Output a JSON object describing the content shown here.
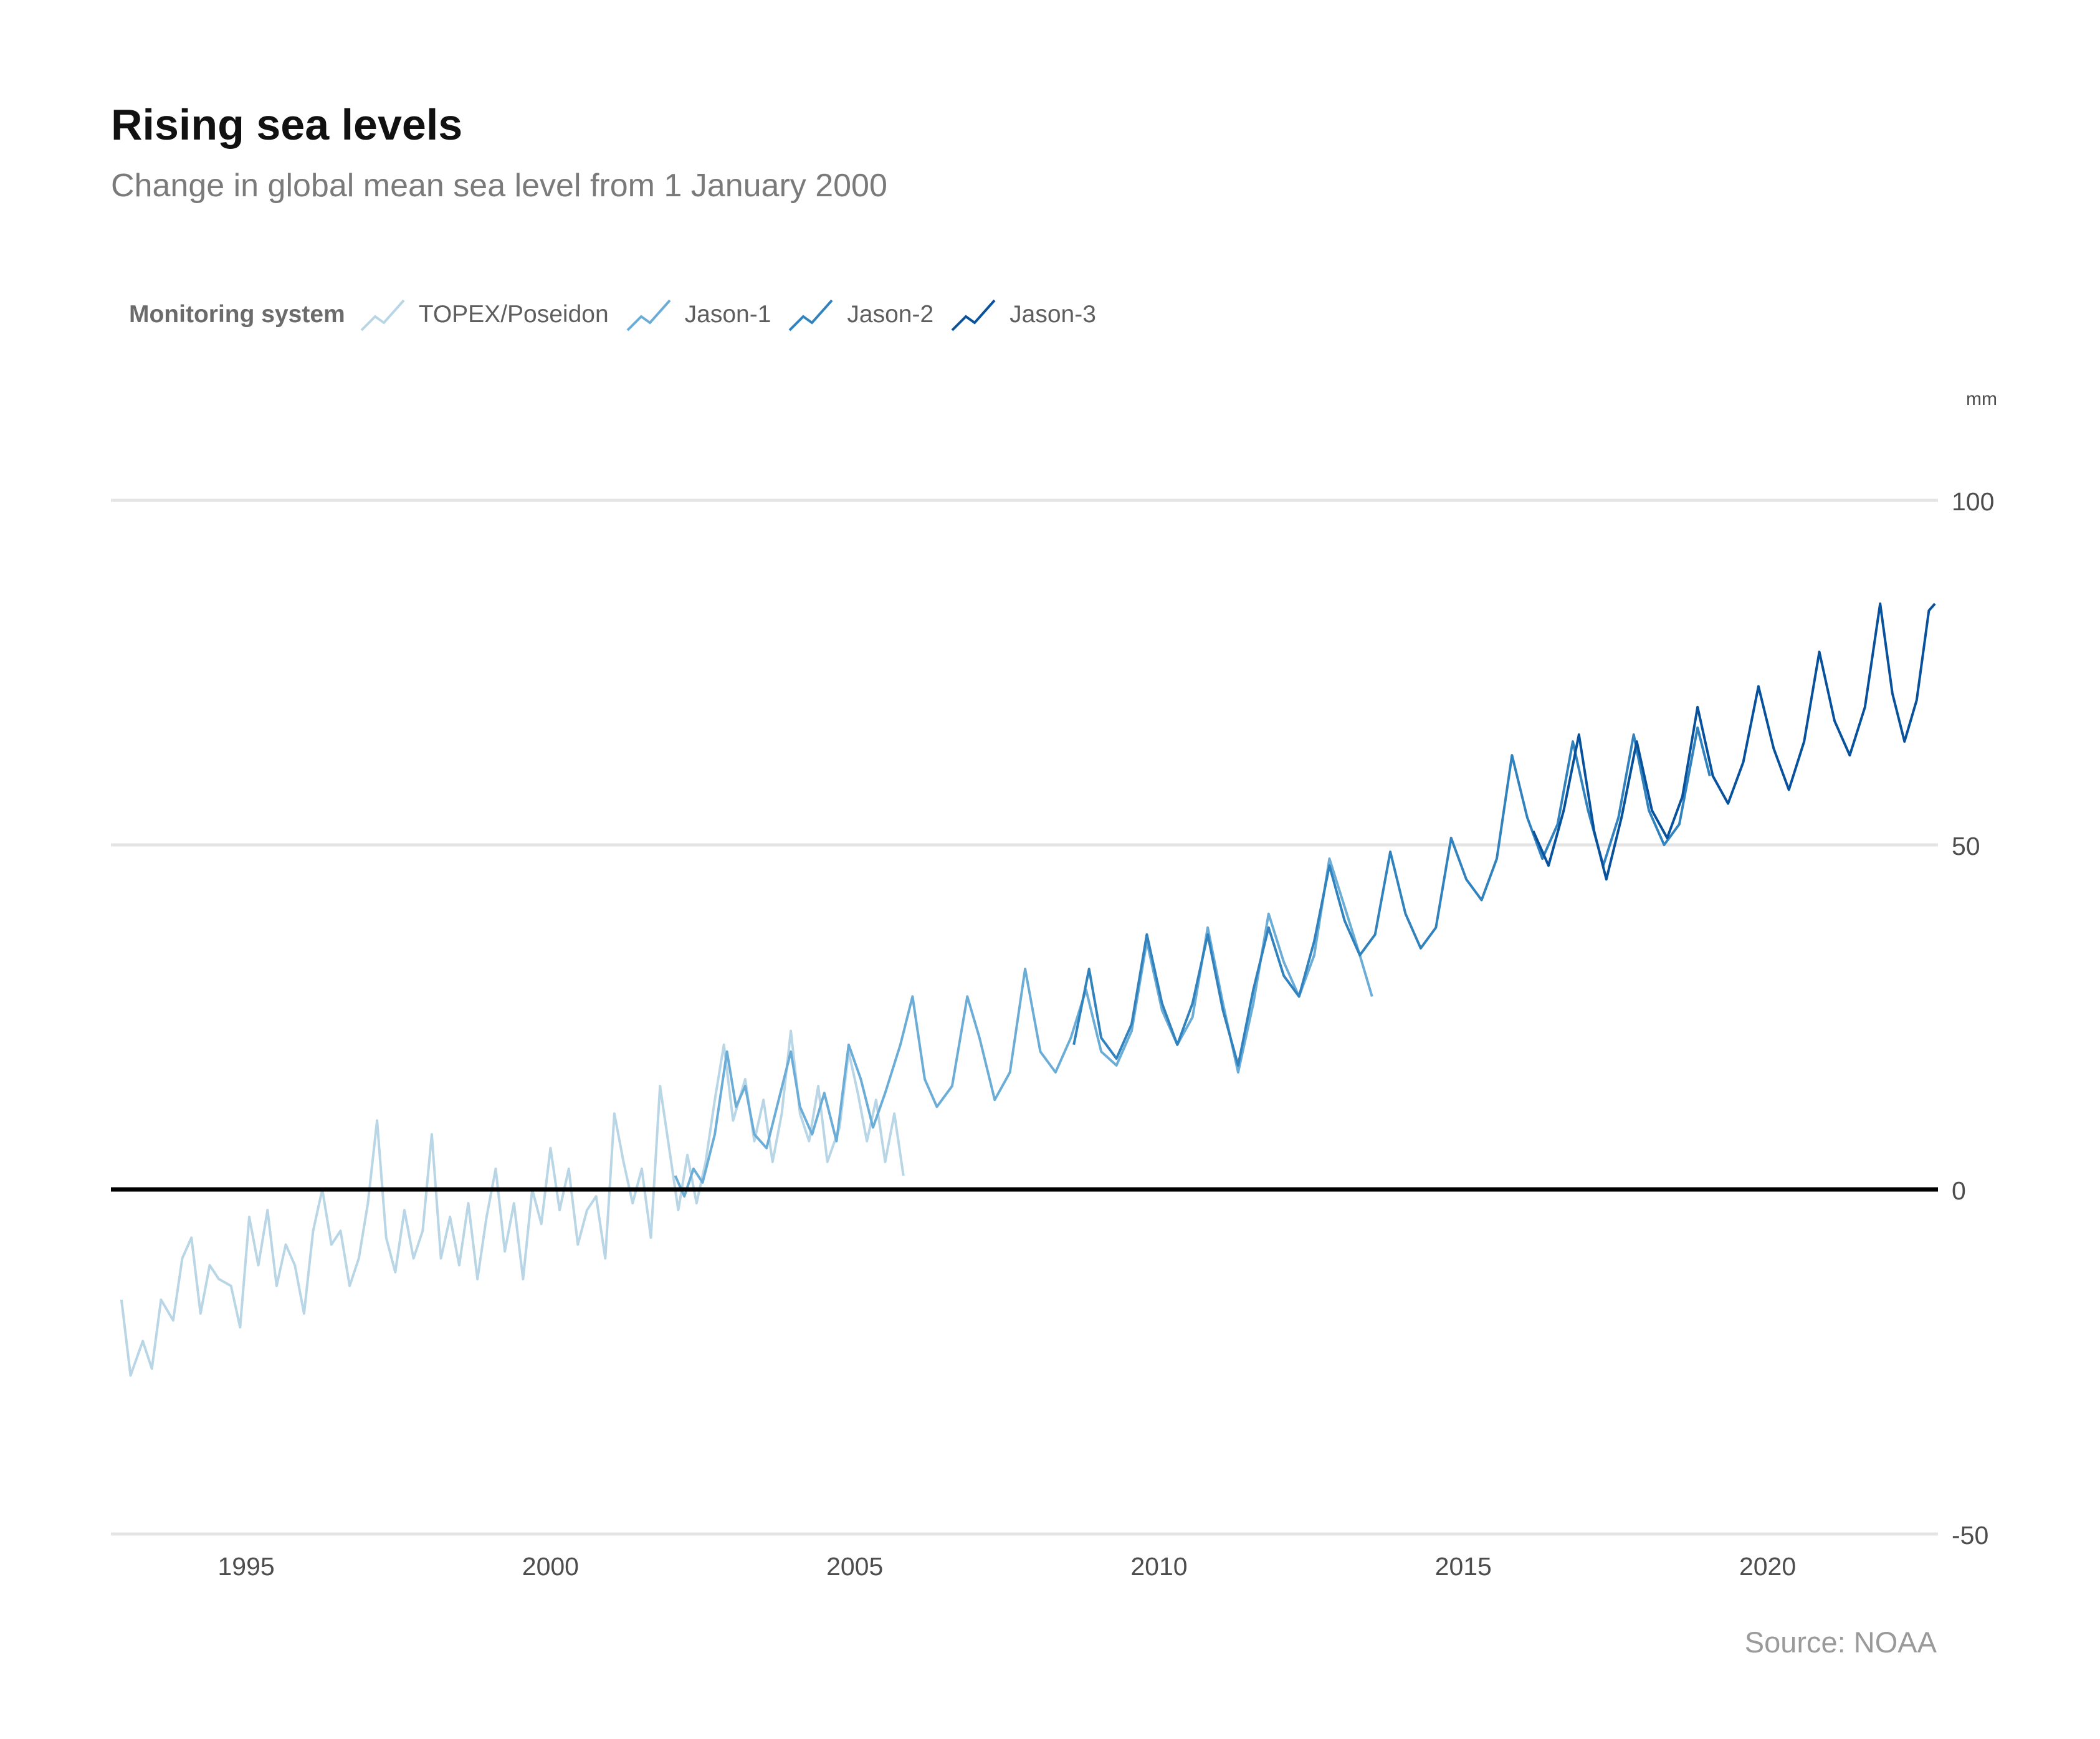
{
  "chart_data": {
    "type": "line",
    "title": "Rising sea levels",
    "subtitle": "Change in global mean sea level from 1 January 2000",
    "ylabel": "mm",
    "xlabel": "",
    "x_range": [
      1992.9,
      2022.8
    ],
    "ylim": [
      -50,
      100
    ],
    "x_ticks": [
      1995,
      2000,
      2005,
      2010,
      2015,
      2020
    ],
    "x_tick_labels": [
      "1995",
      "2000",
      "2005",
      "2010",
      "2015",
      "2020"
    ],
    "y_ticks": [
      -50,
      0,
      50,
      100
    ],
    "y_tick_labels": [
      "-50",
      "0",
      "50",
      "100"
    ],
    "reference_line": 0,
    "grid": true,
    "legend_title": "Monitoring system",
    "legend_position": "top-left",
    "source": "Source: NOAA",
    "series": [
      {
        "name": "TOPEX/Poseidon",
        "color": "#b9d6e6",
        "points": [
          [
            1992.95,
            -16
          ],
          [
            1993.1,
            -27
          ],
          [
            1993.3,
            -22
          ],
          [
            1993.45,
            -26
          ],
          [
            1993.6,
            -16
          ],
          [
            1993.8,
            -19
          ],
          [
            1993.95,
            -10
          ],
          [
            1994.1,
            -7
          ],
          [
            1994.25,
            -18
          ],
          [
            1994.4,
            -11
          ],
          [
            1994.55,
            -13
          ],
          [
            1994.75,
            -14
          ],
          [
            1994.9,
            -20
          ],
          [
            1995.05,
            -4
          ],
          [
            1995.2,
            -11
          ],
          [
            1995.35,
            -3
          ],
          [
            1995.5,
            -14
          ],
          [
            1995.65,
            -8
          ],
          [
            1995.8,
            -11
          ],
          [
            1995.95,
            -18
          ],
          [
            1996.1,
            -6
          ],
          [
            1996.25,
            0
          ],
          [
            1996.4,
            -8
          ],
          [
            1996.55,
            -6
          ],
          [
            1996.7,
            -14
          ],
          [
            1996.85,
            -10
          ],
          [
            1997,
            -2
          ],
          [
            1997.15,
            10
          ],
          [
            1997.3,
            -7
          ],
          [
            1997.45,
            -12
          ],
          [
            1997.6,
            -3
          ],
          [
            1997.75,
            -10
          ],
          [
            1997.9,
            -6
          ],
          [
            1998.05,
            8
          ],
          [
            1998.2,
            -10
          ],
          [
            1998.35,
            -4
          ],
          [
            1998.5,
            -11
          ],
          [
            1998.65,
            -2
          ],
          [
            1998.8,
            -13
          ],
          [
            1998.95,
            -4
          ],
          [
            1999.1,
            3
          ],
          [
            1999.25,
            -9
          ],
          [
            1999.4,
            -2
          ],
          [
            1999.55,
            -13
          ],
          [
            1999.7,
            0
          ],
          [
            1999.85,
            -5
          ],
          [
            2000,
            6
          ],
          [
            2000.15,
            -3
          ],
          [
            2000.3,
            3
          ],
          [
            2000.45,
            -8
          ],
          [
            2000.6,
            -3
          ],
          [
            2000.75,
            -1
          ],
          [
            2000.9,
            -10
          ],
          [
            2001.05,
            11
          ],
          [
            2001.2,
            4
          ],
          [
            2001.35,
            -2
          ],
          [
            2001.5,
            3
          ],
          [
            2001.65,
            -7
          ],
          [
            2001.8,
            15
          ],
          [
            2001.95,
            6
          ],
          [
            2002.1,
            -3
          ],
          [
            2002.25,
            5
          ],
          [
            2002.4,
            -2
          ],
          [
            2002.55,
            4
          ],
          [
            2002.7,
            13
          ],
          [
            2002.85,
            21
          ],
          [
            2003,
            10
          ],
          [
            2003.2,
            16
          ],
          [
            2003.35,
            7
          ],
          [
            2003.5,
            13
          ],
          [
            2003.65,
            4
          ],
          [
            2003.8,
            11
          ],
          [
            2003.95,
            23
          ],
          [
            2004.1,
            11
          ],
          [
            2004.25,
            7
          ],
          [
            2004.4,
            15
          ],
          [
            2004.55,
            4
          ],
          [
            2004.75,
            9
          ],
          [
            2004.9,
            20
          ],
          [
            2005.05,
            14
          ],
          [
            2005.2,
            7
          ],
          [
            2005.35,
            13
          ],
          [
            2005.5,
            4
          ],
          [
            2005.65,
            11
          ],
          [
            2005.8,
            2
          ]
        ]
      },
      {
        "name": "Jason-1",
        "color": "#6badd6",
        "points": [
          [
            2002.05,
            2
          ],
          [
            2002.2,
            -1
          ],
          [
            2002.35,
            3
          ],
          [
            2002.5,
            1
          ],
          [
            2002.7,
            8
          ],
          [
            2002.9,
            20
          ],
          [
            2003.05,
            12
          ],
          [
            2003.2,
            15
          ],
          [
            2003.35,
            8
          ],
          [
            2003.55,
            6
          ],
          [
            2003.75,
            13
          ],
          [
            2003.95,
            20
          ],
          [
            2004.1,
            12
          ],
          [
            2004.3,
            8
          ],
          [
            2004.5,
            14
          ],
          [
            2004.7,
            7
          ],
          [
            2004.9,
            21
          ],
          [
            2005.1,
            16
          ],
          [
            2005.3,
            9
          ],
          [
            2005.5,
            14
          ],
          [
            2005.75,
            21
          ],
          [
            2005.95,
            28
          ],
          [
            2006.15,
            16
          ],
          [
            2006.35,
            12
          ],
          [
            2006.6,
            15
          ],
          [
            2006.85,
            28
          ],
          [
            2007.05,
            22
          ],
          [
            2007.3,
            13
          ],
          [
            2007.55,
            17
          ],
          [
            2007.8,
            32
          ],
          [
            2008.05,
            20
          ],
          [
            2008.3,
            17
          ],
          [
            2008.55,
            22
          ],
          [
            2008.8,
            29
          ],
          [
            2009.05,
            20
          ],
          [
            2009.3,
            18
          ],
          [
            2009.55,
            23
          ],
          [
            2009.8,
            36
          ],
          [
            2010.05,
            26
          ],
          [
            2010.3,
            21
          ],
          [
            2010.55,
            25
          ],
          [
            2010.8,
            38
          ],
          [
            2011.05,
            27
          ],
          [
            2011.3,
            17
          ],
          [
            2011.55,
            27
          ],
          [
            2011.8,
            40
          ],
          [
            2012.05,
            33
          ],
          [
            2012.3,
            28
          ],
          [
            2012.55,
            34
          ],
          [
            2012.8,
            48
          ],
          [
            2013.05,
            41
          ],
          [
            2013.3,
            34
          ],
          [
            2013.5,
            28
          ]
        ]
      },
      {
        "name": "Jason-2",
        "color": "#3182bd",
        "points": [
          [
            2008.6,
            21
          ],
          [
            2008.85,
            32
          ],
          [
            2009.05,
            22
          ],
          [
            2009.3,
            19
          ],
          [
            2009.55,
            24
          ],
          [
            2009.8,
            37
          ],
          [
            2010.05,
            27
          ],
          [
            2010.3,
            21
          ],
          [
            2010.55,
            27
          ],
          [
            2010.8,
            37
          ],
          [
            2011.05,
            26
          ],
          [
            2011.3,
            18
          ],
          [
            2011.55,
            29
          ],
          [
            2011.8,
            38
          ],
          [
            2012.05,
            31
          ],
          [
            2012.3,
            28
          ],
          [
            2012.55,
            36
          ],
          [
            2012.8,
            47
          ],
          [
            2013.05,
            39
          ],
          [
            2013.3,
            34
          ],
          [
            2013.55,
            37
          ],
          [
            2013.8,
            49
          ],
          [
            2014.05,
            40
          ],
          [
            2014.3,
            35
          ],
          [
            2014.55,
            38
          ],
          [
            2014.8,
            51
          ],
          [
            2015.05,
            45
          ],
          [
            2015.3,
            42
          ],
          [
            2015.55,
            48
          ],
          [
            2015.8,
            63
          ],
          [
            2016.05,
            54
          ],
          [
            2016.3,
            48
          ],
          [
            2016.55,
            53
          ],
          [
            2016.8,
            65
          ],
          [
            2017.05,
            55
          ],
          [
            2017.3,
            47
          ],
          [
            2017.55,
            54
          ],
          [
            2017.8,
            66
          ],
          [
            2018.05,
            55
          ],
          [
            2018.3,
            50
          ],
          [
            2018.55,
            53
          ],
          [
            2018.85,
            67
          ],
          [
            2019.05,
            60
          ]
        ]
      },
      {
        "name": "Jason-3",
        "color": "#08519c",
        "points": [
          [
            2016.15,
            52
          ],
          [
            2016.4,
            47
          ],
          [
            2016.65,
            55
          ],
          [
            2016.9,
            66
          ],
          [
            2017.15,
            52
          ],
          [
            2017.35,
            45
          ],
          [
            2017.6,
            54
          ],
          [
            2017.85,
            65
          ],
          [
            2018.1,
            55
          ],
          [
            2018.35,
            51
          ],
          [
            2018.6,
            57
          ],
          [
            2018.85,
            70
          ],
          [
            2019.1,
            60
          ],
          [
            2019.35,
            56
          ],
          [
            2019.6,
            62
          ],
          [
            2019.85,
            73
          ],
          [
            2020.1,
            64
          ],
          [
            2020.35,
            58
          ],
          [
            2020.6,
            65
          ],
          [
            2020.85,
            78
          ],
          [
            2021.1,
            68
          ],
          [
            2021.35,
            63
          ],
          [
            2021.6,
            70
          ],
          [
            2021.85,
            85
          ],
          [
            2022.05,
            72
          ],
          [
            2022.25,
            65
          ],
          [
            2022.45,
            71
          ],
          [
            2022.65,
            84
          ],
          [
            2022.75,
            85
          ]
        ]
      }
    ]
  }
}
